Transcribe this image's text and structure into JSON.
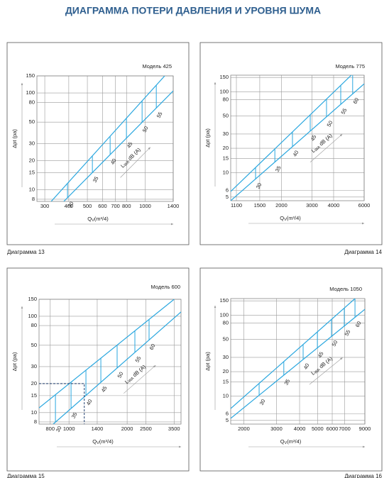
{
  "title": "ДИАГРАММА  ПОТЕРИ ДАВЛЕНИЯ И УРОВНЯ ШУМА",
  "chart_data": [
    {
      "type": "line",
      "model": "Модель 425",
      "caption": "Диаграмма 13",
      "y_label": "Δpt (pa)",
      "x_label": "Q",
      "x_label_sub": "V",
      "x_label_unit": "(m³/4)",
      "noise_label": "L",
      "noise_label_sub": "WA",
      "noise_label_unit": "dB (A)",
      "log_x": true,
      "log_y": true,
      "grid": true,
      "color": "#2aa7df",
      "xlim": [
        273,
        1400
      ],
      "ylim": [
        7.6,
        150
      ],
      "xticks": [
        300,
        400,
        500,
        600,
        700,
        800,
        1000,
        1400
      ],
      "yticks": [
        8,
        10,
        15,
        20,
        30,
        50,
        80,
        100,
        150
      ],
      "series": [
        {
          "x": [
            324,
            1264
          ],
          "values": [
            7.6,
            150
          ]
        },
        {
          "x": [
            377,
            1400
          ],
          "values": [
            7.6,
            105
          ]
        }
      ],
      "noise": {
        "levels": [
          30,
          35,
          40,
          45,
          50,
          55
        ],
        "x": [
          394,
          531,
          657,
          799,
          964,
          1143
        ]
      }
    },
    {
      "type": "line",
      "model": "Модель 775",
      "caption": "Диаграмма 14",
      "y_label": "Δpt (pa)",
      "x_label": "Q",
      "x_label_sub": "V",
      "x_label_unit": "(m³/4)",
      "noise_label": "L",
      "noise_label_sub": "WA",
      "noise_label_unit": "dB (A)",
      "log_x": true,
      "log_y": true,
      "grid": true,
      "color": "#2aa7df",
      "xlim": [
        1020,
        6000
      ],
      "ylim": [
        4.5,
        160
      ],
      "xticks": [
        1100,
        1500,
        2000,
        3000,
        4000,
        6000
      ],
      "yticks": [
        5,
        6,
        10,
        15,
        20,
        30,
        50,
        80,
        100,
        150
      ],
      "series": [
        {
          "x": [
            1020,
            5060
          ],
          "values": [
            5.85,
            160
          ]
        },
        {
          "x": [
            1020,
            6000
          ],
          "values": [
            4.5,
            125
          ]
        }
      ],
      "noise": {
        "levels": [
          30,
          35,
          40,
          45,
          50,
          55,
          60
        ],
        "x": [
          1419,
          1833,
          2316,
          2932,
          3640,
          4396,
          5150
        ]
      }
    },
    {
      "type": "line",
      "model": "Модель 600",
      "caption": "Диаграмма 15",
      "y_label": "Δpt (pa)",
      "x_label": "Q",
      "x_label_sub": "V",
      "x_label_unit": "(m³/4)",
      "noise_label": "L",
      "noise_label_sub": "WA",
      "noise_label_unit": "dB (A)",
      "log_x": true,
      "log_y": true,
      "grid": true,
      "color": "#2aa7df",
      "xlim": [
        700,
        3800
      ],
      "ylim": [
        7.6,
        150
      ],
      "xticks": [
        800,
        1000,
        1400,
        2000,
        2500,
        3500
      ],
      "yticks": [
        8,
        10,
        15,
        20,
        30,
        50,
        80,
        100,
        150
      ],
      "series": [
        {
          "x": [
            700,
            3500
          ],
          "values": [
            11.2,
            150
          ]
        },
        {
          "x": [
            829,
            3800
          ],
          "values": [
            7.6,
            111
          ]
        }
      ],
      "noise": {
        "levels": [
          30,
          35,
          40,
          45,
          50,
          55,
          60
        ],
        "x": [
          851,
          1025,
          1224,
          1462,
          1775,
          2193,
          2597
        ]
      },
      "marker": {
        "x": 1200,
        "y": 20
      }
    },
    {
      "type": "line",
      "model": "Модель 1050",
      "caption": "Диаграмма 16",
      "y_label": "Δpt (pa)",
      "x_label": "Q",
      "x_label_sub": "V",
      "x_label_unit": "(m³/4)",
      "noise_label": "L",
      "noise_label_sub": "WA",
      "noise_label_unit": "dB (A)",
      "log_x": true,
      "log_y": true,
      "grid": true,
      "color": "#2aa7df",
      "xlim": [
        1700,
        9000
      ],
      "ylim": [
        4.5,
        160
      ],
      "xticks": [
        2000,
        3000,
        4000,
        5000,
        6000,
        7000,
        9000
      ],
      "yticks": [
        5,
        6,
        10,
        15,
        20,
        30,
        50,
        80,
        100,
        150
      ],
      "series": [
        {
          "x": [
            1700,
            7960
          ],
          "values": [
            7.0,
            160
          ]
        },
        {
          "x": [
            1700,
            9000
          ],
          "values": [
            5.3,
            118
          ]
        }
      ],
      "noise": {
        "levels": [
          30,
          35,
          40,
          45,
          50,
          55,
          60
        ],
        "x": [
          2420,
          3288,
          4180,
          4990,
          5946,
          6970,
          7960
        ]
      }
    }
  ]
}
